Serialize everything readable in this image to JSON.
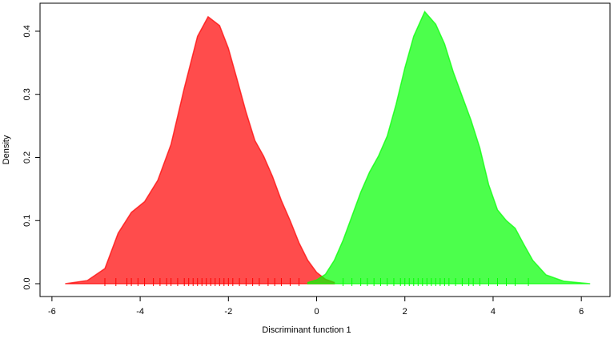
{
  "chart_data": {
    "type": "density",
    "xlabel": "Discriminant function 1",
    "ylabel": "Density",
    "xlim": [
      -6.27,
      6.65
    ],
    "ylim": [
      -0.0203,
      0.4444
    ],
    "xticks": [
      -6,
      -4,
      -2,
      0,
      2,
      4,
      6
    ],
    "yticks": [
      {
        "value": 0,
        "label": "0.0"
      },
      0.1,
      0.2,
      0.3,
      0.4
    ],
    "series": [
      {
        "color": "#ff0000",
        "opacity": 0.7,
        "x": [
          -5.7,
          -5.2,
          -4.8,
          -4.5,
          -4.2,
          -3.9,
          -3.6,
          -3.3,
          -3.0,
          -2.7,
          -2.46,
          -2.2,
          -2.0,
          -1.8,
          -1.6,
          -1.4,
          -1.2,
          -1.0,
          -0.8,
          -0.6,
          -0.4,
          -0.2,
          0,
          0.2,
          0.4
        ],
        "values": [
          0,
          0.005,
          0.024,
          0.08,
          0.113,
          0.13,
          0.164,
          0.221,
          0.31,
          0.392,
          0.423,
          0.409,
          0.373,
          0.323,
          0.272,
          0.227,
          0.202,
          0.17,
          0.132,
          0.1,
          0.065,
          0.037,
          0.018,
          0.007,
          0.002
        ],
        "rug": [
          -4.8,
          -4.55,
          -4.3,
          -4.2,
          -4.05,
          -3.9,
          -3.7,
          -3.55,
          -3.4,
          -3.3,
          -3.15,
          -3.0,
          -2.9,
          -2.8,
          -2.7,
          -2.6,
          -2.5,
          -2.4,
          -2.3,
          -2.2,
          -2.1,
          -2.0,
          -1.9,
          -1.75,
          -1.6,
          -1.45,
          -1.3,
          -1.1,
          -0.95,
          -0.8,
          -0.6,
          -0.4
        ]
      },
      {
        "color": "#00ff00",
        "opacity": 0.7,
        "x": [
          -0.2,
          0,
          0.2,
          0.4,
          0.6,
          0.8,
          1.0,
          1.2,
          1.4,
          1.6,
          1.8,
          2.0,
          2.2,
          2.45,
          2.7,
          2.9,
          3.1,
          3.3,
          3.5,
          3.7,
          3.9,
          4.1,
          4.3,
          4.5,
          4.7,
          4.9,
          5.2,
          5.6,
          6.2
        ],
        "values": [
          0.002,
          0.006,
          0.015,
          0.037,
          0.069,
          0.107,
          0.145,
          0.177,
          0.202,
          0.234,
          0.284,
          0.342,
          0.392,
          0.431,
          0.411,
          0.38,
          0.335,
          0.297,
          0.259,
          0.215,
          0.157,
          0.117,
          0.1,
          0.088,
          0.062,
          0.037,
          0.014,
          0.004,
          0
        ],
        "rug": [
          0.6,
          0.8,
          1.0,
          1.15,
          1.3,
          1.45,
          1.6,
          1.75,
          1.9,
          2.0,
          2.1,
          2.2,
          2.3,
          2.4,
          2.5,
          2.6,
          2.7,
          2.8,
          2.9,
          3.0,
          3.15,
          3.3,
          3.45,
          3.55,
          3.7,
          3.9,
          4.1,
          4.3,
          4.5,
          4.8
        ]
      }
    ]
  }
}
